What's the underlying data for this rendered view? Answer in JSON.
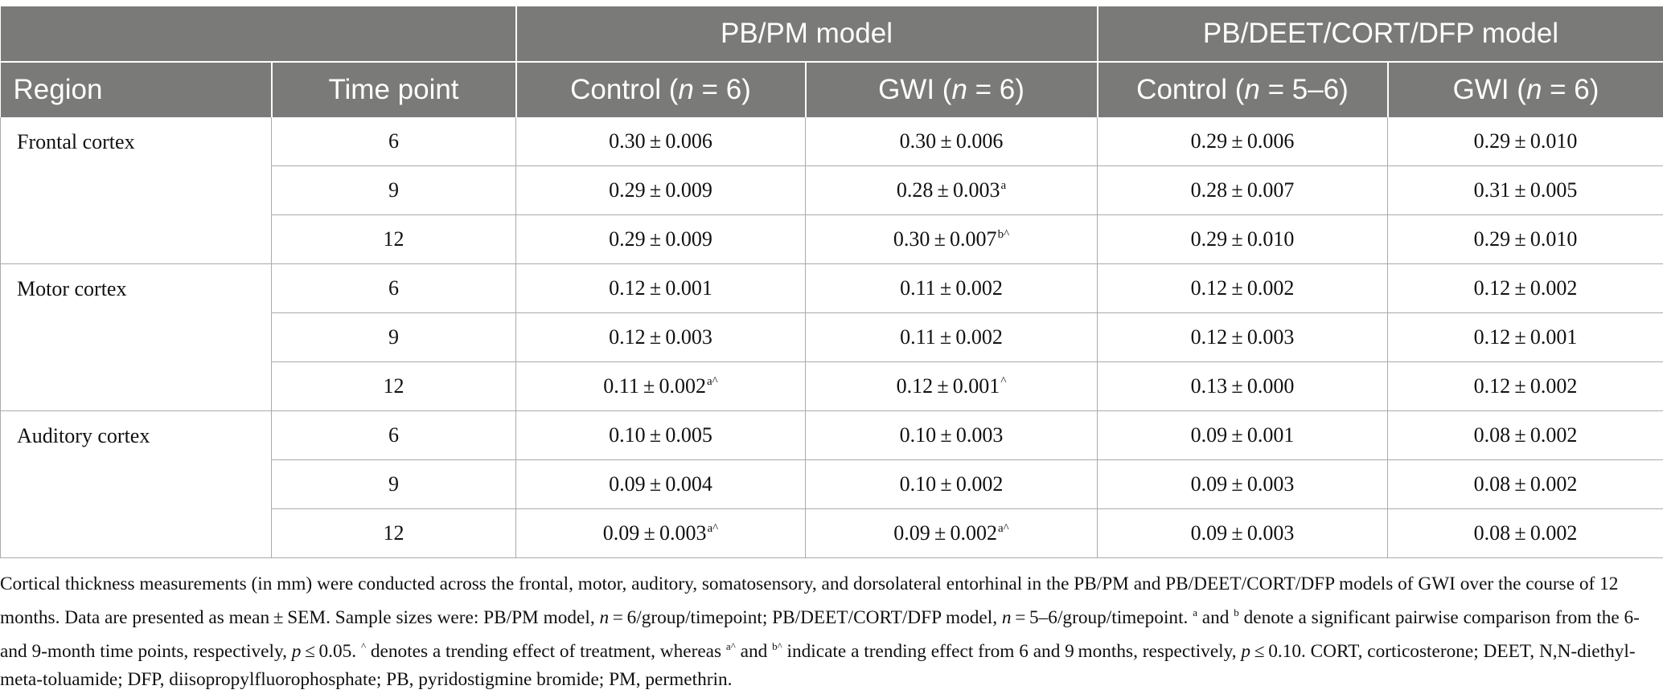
{
  "header": {
    "group1": "PB/PM model",
    "group2": "PB/DEET/CORT/DFP model",
    "col_region": "Region",
    "col_time": "Time point",
    "col_c1": "Control (",
    "col_c1_n": "n",
    "col_c1_tail": " = 6)",
    "col_g1": "GWI (",
    "col_g1_n": "n",
    "col_g1_tail": " = 6)",
    "col_c2": "Control (",
    "col_c2_n": "n",
    "col_c2_tail": " = 5–6)",
    "col_g2": "GWI (",
    "col_g2_n": "n",
    "col_g2_tail": " = 6)"
  },
  "regions": [
    {
      "name": "Frontal cortex",
      "rows": [
        {
          "time": "6",
          "c1": "0.30 ± 0.006",
          "c1s": "",
          "g1": "0.30 ± 0.006",
          "g1s": "",
          "c2": "0.29 ± 0.006",
          "g2": "0.29 ± 0.010"
        },
        {
          "time": "9",
          "c1": "0.29 ± 0.009",
          "c1s": "",
          "g1": "0.28 ± 0.003",
          "g1s": "a",
          "c2": "0.28 ± 0.007",
          "g2": "0.31 ± 0.005"
        },
        {
          "time": "12",
          "c1": "0.29 ± 0.009",
          "c1s": "",
          "g1": "0.30 ± 0.007",
          "g1s": "b^",
          "c2": "0.29 ± 0.010",
          "g2": "0.29 ± 0.010"
        }
      ]
    },
    {
      "name": "Motor cortex",
      "rows": [
        {
          "time": "6",
          "c1": "0.12 ± 0.001",
          "c1s": "",
          "g1": "0.11 ± 0.002",
          "g1s": "",
          "c2": "0.12 ± 0.002",
          "g2": "0.12 ± 0.002"
        },
        {
          "time": "9",
          "c1": "0.12 ± 0.003",
          "c1s": "",
          "g1": "0.11 ± 0.002",
          "g1s": "",
          "c2": "0.12 ± 0.003",
          "g2": "0.12 ± 0.001"
        },
        {
          "time": "12",
          "c1": "0.11 ± 0.002",
          "c1s": "a^",
          "g1": "0.12 ± 0.001",
          "g1s": "^",
          "c2": "0.13 ± 0.000",
          "g2": "0.12 ± 0.002"
        }
      ]
    },
    {
      "name": "Auditory cortex",
      "rows": [
        {
          "time": "6",
          "c1": "0.10 ± 0.005",
          "c1s": "",
          "g1": "0.10 ± 0.003",
          "g1s": "",
          "c2": "0.09 ± 0.001",
          "g2": "0.08 ± 0.002"
        },
        {
          "time": "9",
          "c1": "0.09 ± 0.004",
          "c1s": "",
          "g1": "0.10 ± 0.002",
          "g1s": "",
          "c2": "0.09 ± 0.003",
          "g2": "0.08 ± 0.002"
        },
        {
          "time": "12",
          "c1": "0.09 ± 0.003",
          "c1s": "a^",
          "g1": "0.09 ± 0.002",
          "g1s": "a^",
          "c2": "0.09 ± 0.003",
          "g2": "0.08 ± 0.002"
        }
      ]
    }
  ],
  "caption": {
    "p1": "Cortical thickness measurements (in mm) were conducted across the frontal, motor, auditory, somatosensory, and dorsolateral entorhinal in the PB/PM and PB/DEET/CORT/DFP models of GWI over the course of 12 months. Data are presented as mean ± SEM. Sample sizes were: PB/PM model, ",
    "n1": "n",
    "p2": " = 6/group/timepoint; PB/DEET/CORT/DFP model, ",
    "n2": "n",
    "p3": " = 5–6/group/timepoint. ",
    "sa": "a",
    "p4": " and ",
    "sb": "b",
    "p5": " denote a significant pairwise comparison from the 6- and 9-month time points, respectively, ",
    "pv1": "p",
    "p6": " ≤ 0.05. ",
    "sc": "^",
    "p7": " denotes a trending effect of treatment, whereas ",
    "sd": "a^",
    "p8": " and ",
    "se": "b^",
    "p9": " indicate a trending effect from 6 and 9 months, respectively, ",
    "pv2": "p",
    "p10": " ≤ 0.10. CORT, corticosterone; DEET, N,N-diethyl-meta-toluamide; DFP, diisopropylfluorophosphate; PB, pyridostigmine bromide; PM, permethrin."
  }
}
